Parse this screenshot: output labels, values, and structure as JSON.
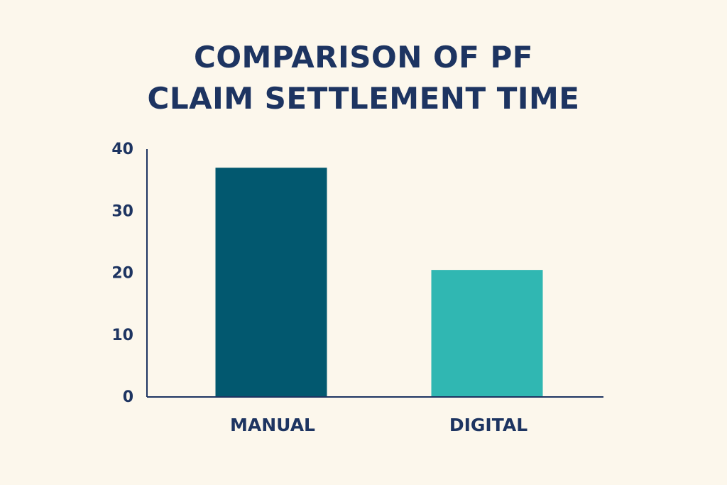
{
  "chart_data": {
    "type": "bar",
    "title_lines": [
      "COMPARISON OF PF",
      "CLAIM SETTLEMENT TIME"
    ],
    "categories": [
      "MANUAL",
      "DIGITAL"
    ],
    "values": [
      37,
      20.5
    ],
    "colors": [
      "#02586f",
      "#30b7b2"
    ],
    "ylim": [
      0,
      40
    ],
    "yticks": [
      "0",
      "10",
      "20",
      "30",
      "40"
    ],
    "xlabel": "",
    "ylabel": "",
    "grid": false,
    "legend": "none",
    "axis_color": "#1d3461",
    "text_color": "#1d3461",
    "background": "#fcf7ec"
  }
}
